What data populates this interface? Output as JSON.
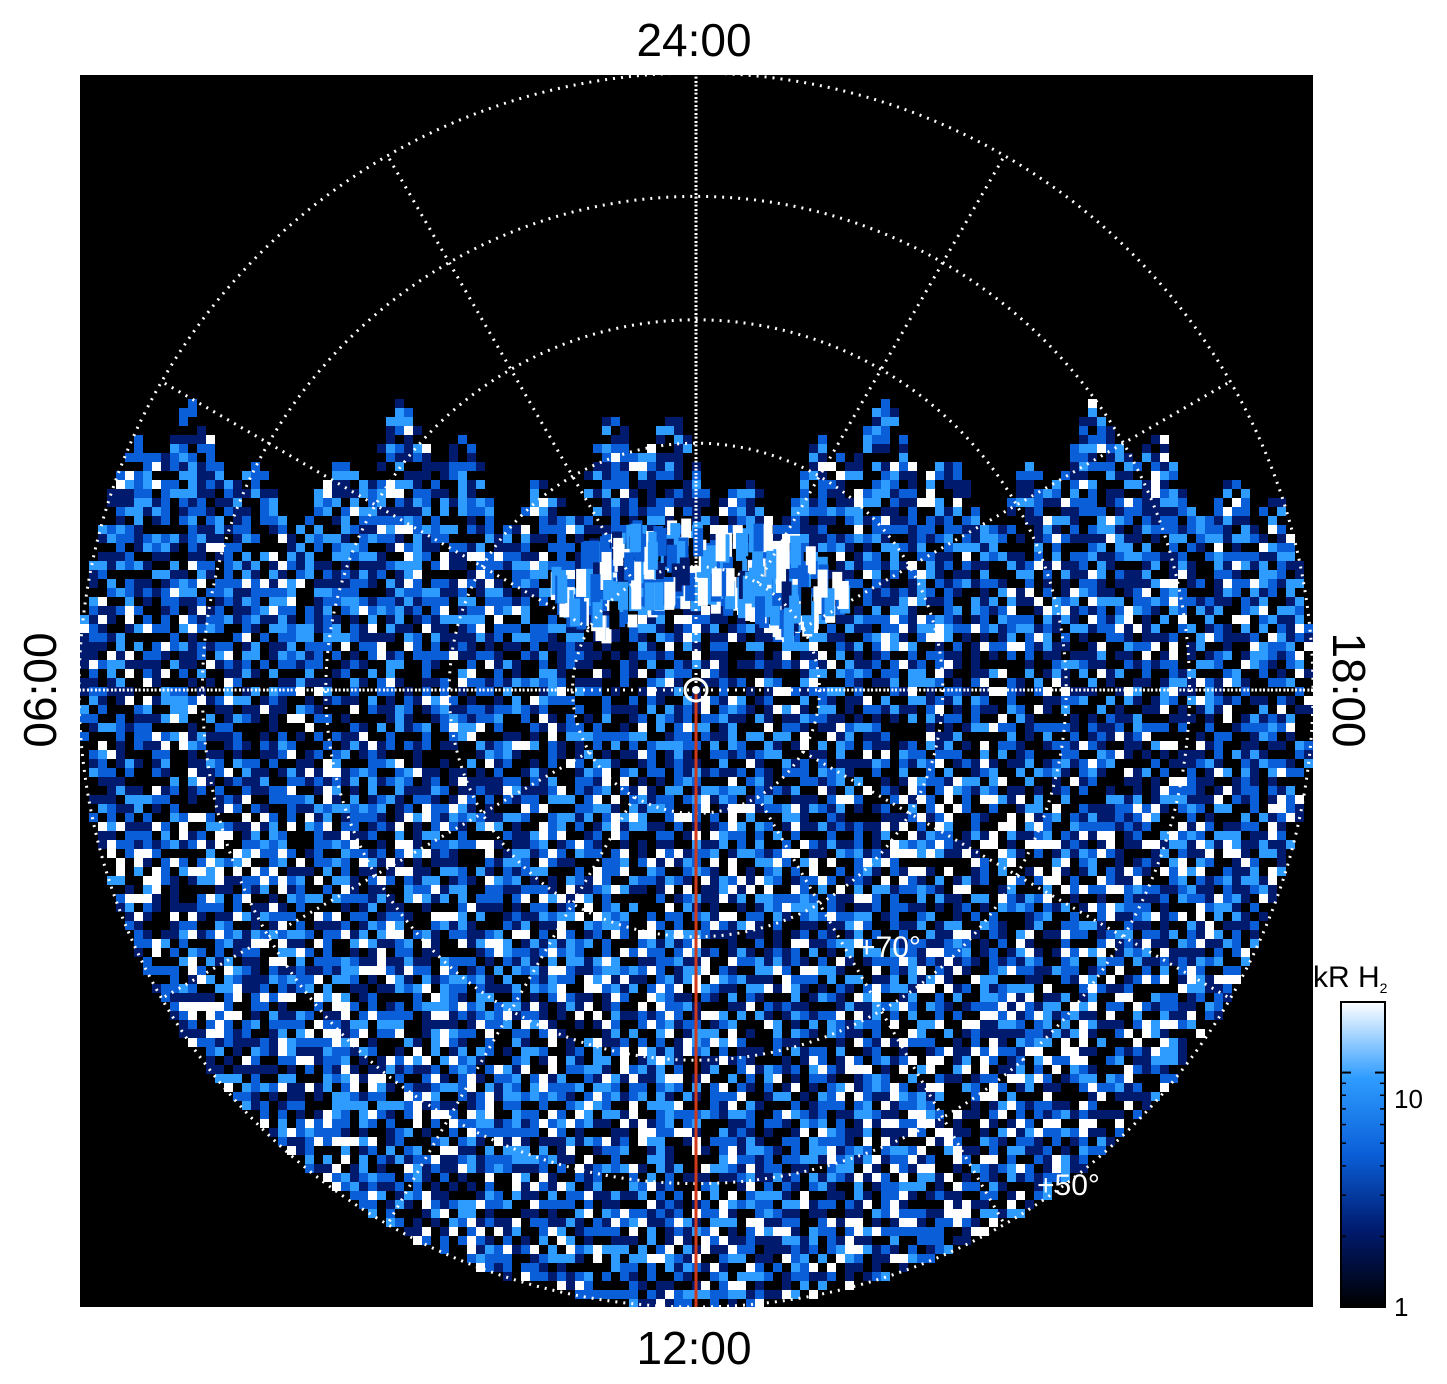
{
  "chart_data": {
    "type": "heatmap",
    "projection": "polar",
    "title": "",
    "local_time_labels": {
      "top": "24:00",
      "bottom": "12:00",
      "left": "06:00",
      "right": "18:00"
    },
    "latitude_labels": [
      "+70°",
      "+50°"
    ],
    "latitude_circles_deg": [
      80,
      70,
      60,
      50,
      40
    ],
    "meridian_spacing_hours": 2,
    "colorbar": {
      "title": "kR H",
      "title_subscript": "2",
      "scale": "log",
      "range": [
        1,
        20
      ],
      "tick_labels": [
        "10",
        "1"
      ],
      "tick_values": [
        10,
        1
      ],
      "colors": [
        "#000000",
        "#001a6e",
        "#0a5fd8",
        "#2e9cff",
        "#ffffff"
      ]
    },
    "overlay_line": {
      "from_lt": "pole",
      "to_lt": "12:00",
      "color": "#d03a1a"
    },
    "background_color": "#000000",
    "grid": true,
    "auroral_oval": {
      "description_free": true,
      "peak_intensity_kR": 20,
      "center_local_time": "24:00"
    }
  }
}
